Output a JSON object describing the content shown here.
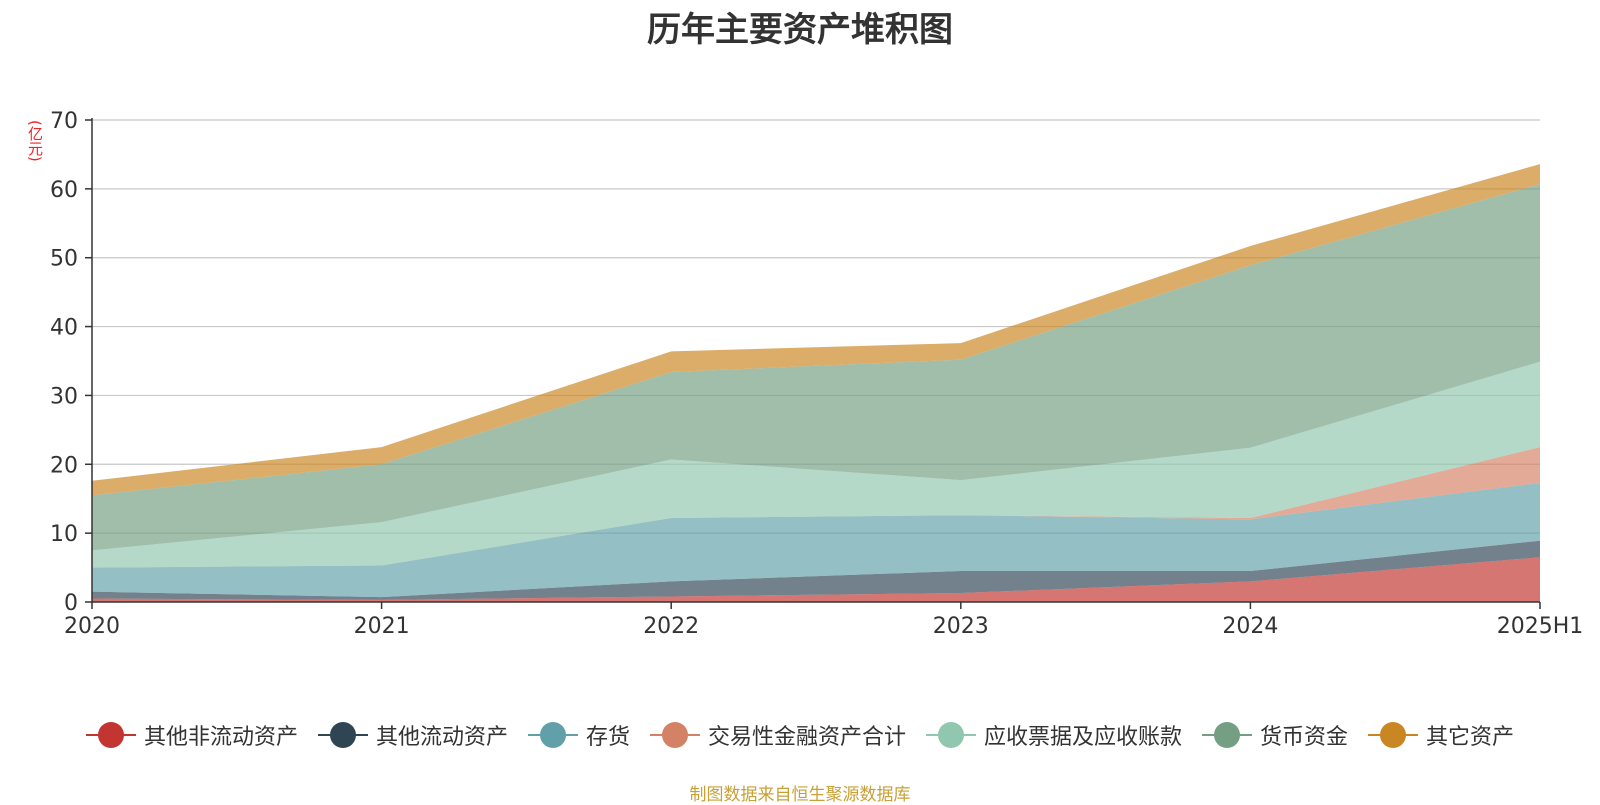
{
  "chart_data": {
    "type": "area",
    "stacked": true,
    "title": "历年主要资产堆积图",
    "ylabel": "(亿元)",
    "ylim": [
      0,
      70
    ],
    "yticks": [
      0,
      10,
      20,
      30,
      40,
      50,
      60,
      70
    ],
    "grid": true,
    "legend": "bottom",
    "categories": [
      "2020",
      "2021",
      "2022",
      "2023",
      "2024",
      "2025H1"
    ],
    "series": [
      {
        "name": "其他非流动资产",
        "color": "#c23531",
        "values": [
          0.5,
          0.3,
          0.8,
          1.3,
          3.0,
          6.5
        ]
      },
      {
        "name": "其他流动资产",
        "color": "#2f4554",
        "values": [
          1.0,
          0.4,
          2.2,
          3.2,
          1.5,
          2.4
        ]
      },
      {
        "name": "存货",
        "color": "#61a0a8",
        "values": [
          3.5,
          4.6,
          9.2,
          8.1,
          7.5,
          8.4
        ]
      },
      {
        "name": "交易性金融资产合计",
        "color": "#d48265",
        "values": [
          0,
          0,
          0,
          0,
          0.2,
          5.2
        ]
      },
      {
        "name": "应收票据及应收账款",
        "color": "#91c7ae",
        "values": [
          2.5,
          6.3,
          8.5,
          5.1,
          10.2,
          12.4
        ]
      },
      {
        "name": "货币资金",
        "color": "#749f83",
        "values": [
          8.0,
          8.4,
          12.7,
          17.5,
          26.5,
          25.8
        ]
      },
      {
        "name": "其它资产",
        "color": "#ca8622",
        "values": [
          2.1,
          2.5,
          3.0,
          2.4,
          2.8,
          2.9
        ]
      }
    ]
  },
  "source_note": "制图数据来自恒生聚源数据库"
}
